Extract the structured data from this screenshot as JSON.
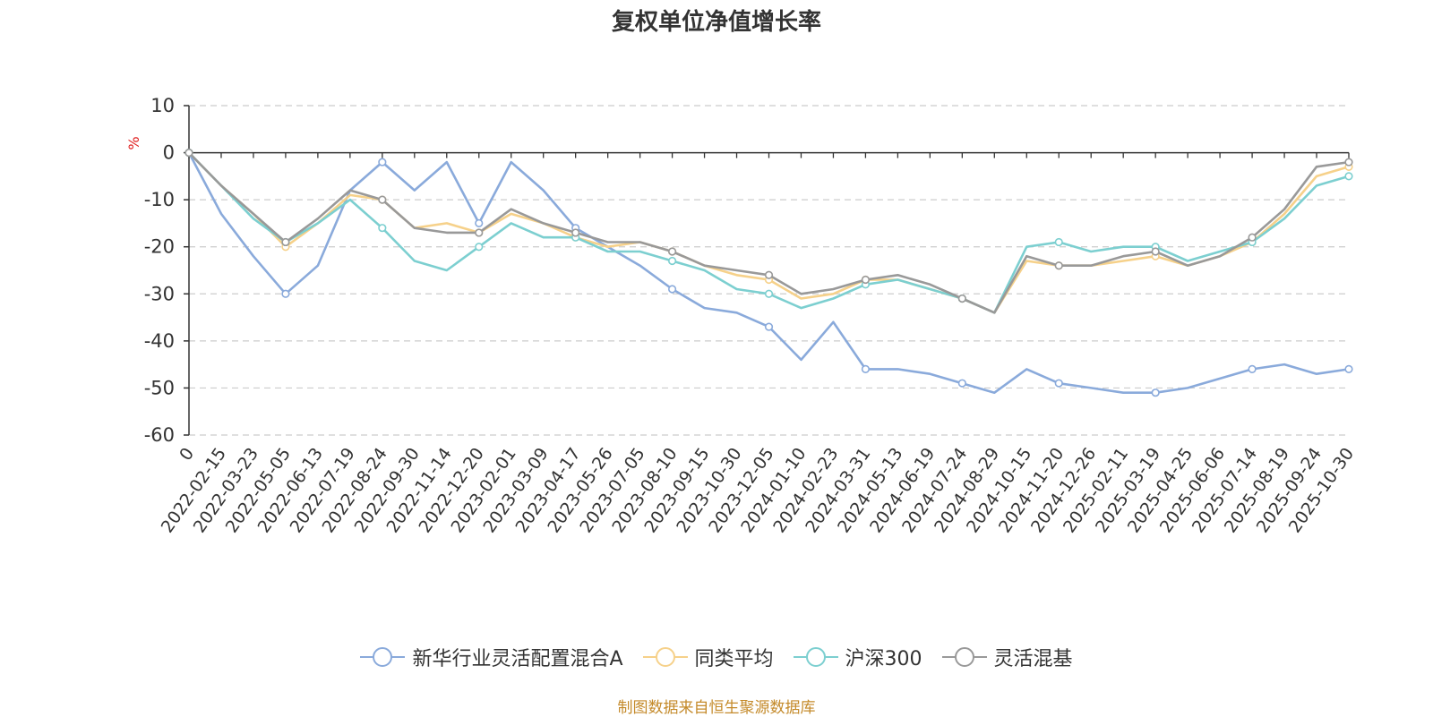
{
  "chart_data": {
    "type": "line",
    "title": "复权单位净值增长率",
    "ylabel": "%",
    "ylim": [
      -60,
      10
    ],
    "yticks": [
      10,
      0,
      -10,
      -20,
      -30,
      -40,
      -50,
      -60
    ],
    "grid": true,
    "legend_position": "bottom",
    "x_tick_labels": [
      "0",
      "2022-02-15",
      "2022-03-23",
      "2022-05-05",
      "2022-06-13",
      "2022-07-19",
      "2022-08-24",
      "2022-09-30",
      "2022-11-14",
      "2022-12-20",
      "2023-02-01",
      "2023-03-09",
      "2023-04-17",
      "2023-05-26",
      "2023-07-05",
      "2023-08-10",
      "2023-09-15",
      "2023-10-30",
      "2023-12-05",
      "2024-01-10",
      "2024-02-23",
      "2024-03-31",
      "2024-05-13",
      "2024-06-19",
      "2024-07-24",
      "2024-08-29",
      "2024-10-15",
      "2024-11-20",
      "2024-12-26",
      "2025-02-11",
      "2025-03-19",
      "2025-04-25",
      "2025-06-06",
      "2025-07-14",
      "2025-08-19",
      "2025-09-24",
      "2025-10-30"
    ],
    "x_index": [
      0,
      1,
      2,
      3,
      4,
      5,
      6,
      7,
      8,
      9,
      10,
      11,
      12,
      13,
      14,
      15,
      16,
      17,
      18,
      19,
      20,
      21,
      22,
      23,
      24,
      25,
      26,
      27,
      28,
      29,
      30,
      31,
      32,
      33,
      34,
      35,
      36
    ],
    "series": [
      {
        "name": "新华行业灵活配置混合A",
        "color": "#8aaadb",
        "values": [
          0,
          -13,
          -22,
          -30,
          -24,
          -8,
          -2,
          -8,
          -2,
          -15,
          -2,
          -8,
          -16,
          -20,
          -24,
          -29,
          -33,
          -34,
          -37,
          -44,
          -36,
          -46,
          -46,
          -47,
          -49,
          -51,
          -46,
          -49,
          -50,
          -51,
          -51,
          -50,
          -48,
          -46,
          -45,
          -47,
          -46
        ]
      },
      {
        "name": "同类平均",
        "color": "#f6d18a",
        "values": [
          0,
          -7,
          -13,
          -20,
          -15,
          -9,
          -10,
          -16,
          -15,
          -17,
          -13,
          -15,
          -18,
          -20,
          -19,
          -21,
          -24,
          -26,
          -27,
          -31,
          -30,
          -27,
          -27,
          -29,
          -31,
          -34,
          -23,
          -24,
          -24,
          -23,
          -22,
          -24,
          -22,
          -19,
          -13,
          -5,
          -3
        ]
      },
      {
        "name": "沪深300",
        "color": "#7ccfd0",
        "values": [
          0,
          -7,
          -14,
          -19,
          -15,
          -10,
          -16,
          -23,
          -25,
          -20,
          -15,
          -18,
          -18,
          -21,
          -21,
          -23,
          -25,
          -29,
          -30,
          -33,
          -31,
          -28,
          -27,
          -29,
          -31,
          -34,
          -20,
          -19,
          -21,
          -20,
          -20,
          -23,
          -21,
          -19,
          -14,
          -7,
          -5
        ]
      },
      {
        "name": "灵活混基",
        "color": "#999999",
        "values": [
          0,
          -7,
          -13,
          -19,
          -14,
          -8,
          -10,
          -16,
          -17,
          -17,
          -12,
          -15,
          -17,
          -19,
          -19,
          -21,
          -24,
          -25,
          -26,
          -30,
          -29,
          -27,
          -26,
          -28,
          -31,
          -34,
          -22,
          -24,
          -24,
          -22,
          -21,
          -24,
          -22,
          -18,
          -12,
          -3,
          -2
        ]
      }
    ]
  },
  "source_note": "制图数据来自恒生聚源数据库"
}
